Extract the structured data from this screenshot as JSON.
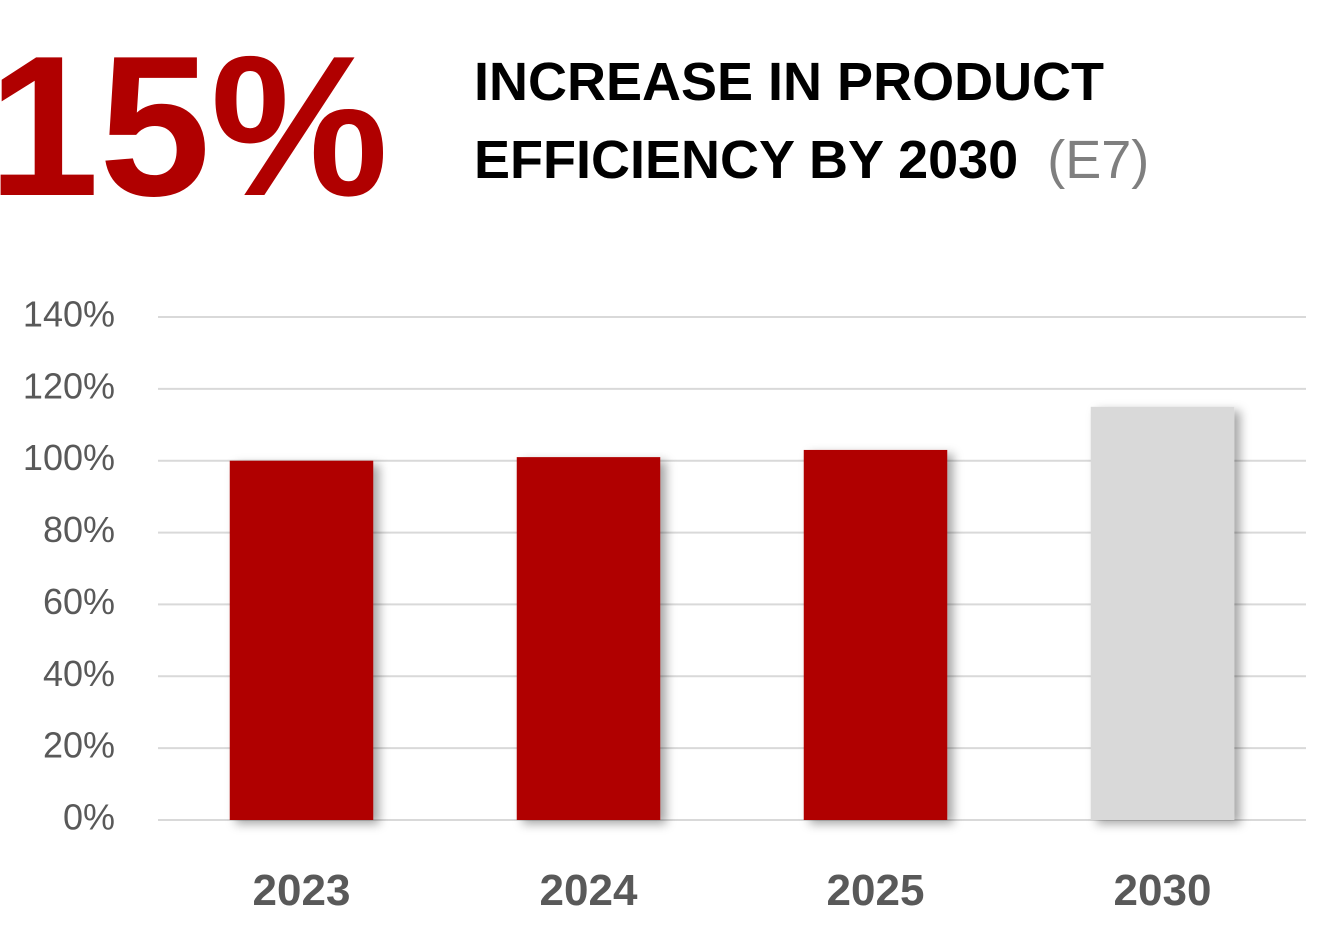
{
  "chart_data": {
    "type": "bar",
    "headline": "15%",
    "title": [
      "INCREASE IN PRODUCT",
      "EFFICIENCY BY 2030"
    ],
    "title_note": "(E7)",
    "categories": [
      "2023",
      "2024",
      "2025",
      "2030"
    ],
    "values": [
      100,
      101,
      103,
      115
    ],
    "colors": [
      "#b00000",
      "#b00000",
      "#b00000",
      "#d9d9d9"
    ],
    "ylim": [
      0,
      140
    ],
    "yticks": [
      {
        "value": 0,
        "label": "0%"
      },
      {
        "value": 20,
        "label": "20%"
      },
      {
        "value": 40,
        "label": "40%"
      },
      {
        "value": 60,
        "label": "60%"
      },
      {
        "value": 80,
        "label": "80%"
      },
      {
        "value": 100,
        "label": "100%"
      },
      {
        "value": 120,
        "label": "120%"
      },
      {
        "value": 140,
        "label": "140%"
      }
    ],
    "grid": true
  }
}
